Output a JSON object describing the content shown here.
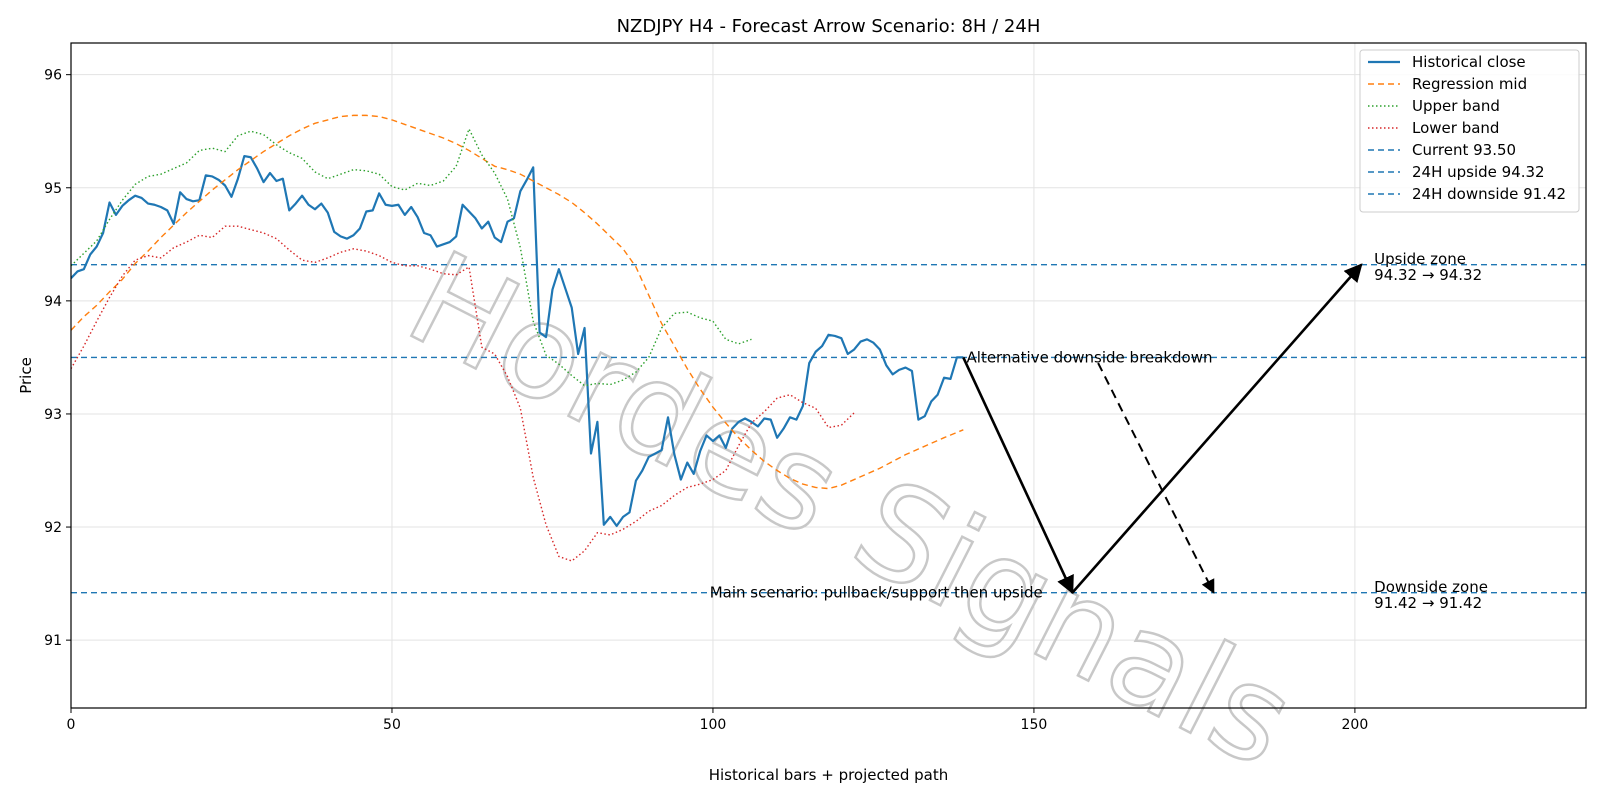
{
  "chart_data": {
    "type": "line",
    "title": "NZDJPY H4 - Forecast Arrow Scenario: 8H / 24H",
    "xlabel": "Historical bars + projected path",
    "ylabel": "Price",
    "xlim": [
      0,
      236
    ],
    "ylim": [
      90.4,
      96.28
    ],
    "xticks": [
      0,
      50,
      100,
      150,
      200
    ],
    "yticks": [
      91,
      92,
      93,
      94,
      95,
      96
    ],
    "grid": true,
    "legend_position": "top-right",
    "series": [
      {
        "name": "Historical close",
        "style": "solid",
        "color": "#1f77b4",
        "values": [
          94.2,
          94.26,
          94.28,
          94.41,
          94.48,
          94.6,
          94.87,
          94.76,
          94.84,
          94.89,
          94.93,
          94.91,
          94.86,
          94.85,
          94.83,
          94.8,
          94.68,
          94.96,
          94.9,
          94.88,
          94.89,
          95.11,
          95.1,
          95.07,
          95.02,
          94.92,
          95.08,
          95.28,
          95.27,
          95.17,
          95.05,
          95.13,
          95.06,
          95.08,
          94.8,
          94.86,
          94.93,
          94.85,
          94.81,
          94.86,
          94.78,
          94.61,
          94.57,
          94.55,
          94.58,
          94.64,
          94.79,
          94.8,
          94.95,
          94.85,
          94.84,
          94.85,
          94.76,
          94.83,
          94.74,
          94.6,
          94.58,
          94.48,
          94.5,
          94.52,
          94.57,
          94.85,
          94.79,
          94.73,
          94.64,
          94.7,
          94.56,
          94.52,
          94.7,
          94.73,
          94.97,
          95.07,
          95.18,
          93.72,
          93.68,
          94.1,
          94.28,
          94.11,
          93.94,
          93.53,
          93.76,
          92.65,
          92.93,
          92.02,
          92.09,
          92.01,
          92.09,
          92.13,
          92.41,
          92.5,
          92.62,
          92.65,
          92.68,
          92.97,
          92.64,
          92.42,
          92.57,
          92.47,
          92.67,
          92.81,
          92.76,
          92.81,
          92.7,
          92.87,
          92.93,
          92.96,
          92.93,
          92.89,
          92.96,
          92.95,
          92.79,
          92.87,
          92.97,
          92.95,
          93.07,
          93.45,
          93.55,
          93.6,
          93.7,
          93.69,
          93.67,
          93.53,
          93.57,
          93.64,
          93.66,
          93.63,
          93.57,
          93.43,
          93.35,
          93.39,
          93.41,
          93.38,
          92.95,
          92.98,
          93.11,
          93.17,
          93.32,
          93.31,
          93.5,
          93.5
        ]
      },
      {
        "name": "Regression mid",
        "style": "dashed",
        "color": "#ff7f0e",
        "values": [
          93.74,
          93.86,
          93.96,
          94.08,
          94.19,
          94.33,
          94.44,
          94.56,
          94.67,
          94.78,
          94.88,
          94.98,
          95.07,
          95.16,
          95.24,
          95.32,
          95.39,
          95.46,
          95.52,
          95.57,
          95.6,
          95.63,
          95.64,
          95.64,
          95.63,
          95.6,
          95.56,
          95.52,
          95.48,
          95.44,
          95.39,
          95.33,
          95.26,
          95.19,
          95.16,
          95.12,
          95.06,
          95.0,
          94.94,
          94.87,
          94.78,
          94.68,
          94.57,
          94.46,
          94.3,
          94.05,
          93.8,
          93.6,
          93.4,
          93.22,
          93.06,
          92.92,
          92.79,
          92.68,
          92.58,
          92.5,
          92.43,
          92.38,
          92.35,
          92.34,
          92.37,
          92.42,
          92.47,
          92.52,
          92.58,
          92.64,
          92.69,
          92.74,
          92.79,
          92.86
        ],
        "x": [
          0,
          2,
          4,
          6,
          8,
          10,
          12,
          14,
          16,
          18,
          20,
          22,
          24,
          26,
          28,
          30,
          32,
          34,
          36,
          38,
          40,
          42,
          44,
          46,
          48,
          50,
          52,
          54,
          56,
          58,
          60,
          62,
          64,
          66,
          68,
          70,
          72,
          74,
          76,
          78,
          80,
          82,
          84,
          86,
          88,
          90,
          92,
          94,
          96,
          98,
          100,
          102,
          104,
          106,
          108,
          110,
          112,
          114,
          116,
          118,
          120,
          122,
          124,
          126,
          128,
          130,
          132,
          134,
          136,
          139
        ]
      },
      {
        "name": "Upper band",
        "style": "dotted",
        "color": "#2ca02c",
        "values": [
          94.31,
          94.42,
          94.53,
          94.72,
          94.89,
          95.03,
          95.1,
          95.12,
          95.17,
          95.22,
          95.33,
          95.35,
          95.32,
          95.46,
          95.5,
          95.47,
          95.38,
          95.31,
          95.26,
          95.14,
          95.08,
          95.12,
          95.16,
          95.15,
          95.12,
          95.01,
          94.98,
          95.04,
          95.02,
          95.06,
          95.19,
          95.52,
          95.29,
          95.13,
          94.9,
          94.47,
          93.82,
          93.52,
          93.44,
          93.34,
          93.25,
          93.27,
          93.26,
          93.3,
          93.37,
          93.5,
          93.76,
          93.89,
          93.9,
          93.85,
          93.82,
          93.66,
          93.62,
          93.66
        ],
        "x": [
          0,
          2,
          4,
          6,
          8,
          10,
          12,
          14,
          16,
          18,
          20,
          22,
          24,
          26,
          28,
          30,
          32,
          34,
          36,
          38,
          40,
          42,
          44,
          46,
          48,
          50,
          52,
          54,
          56,
          58,
          60,
          62,
          64,
          66,
          68,
          70,
          72,
          74,
          76,
          78,
          80,
          82,
          84,
          86,
          88,
          90,
          92,
          94,
          96,
          98,
          100,
          102,
          104,
          106
        ]
      },
      {
        "name": "Lower band",
        "style": "dotted",
        "color": "#d62728",
        "values": [
          93.4,
          93.6,
          93.82,
          94.03,
          94.22,
          94.36,
          94.4,
          94.38,
          94.47,
          94.52,
          94.58,
          94.56,
          94.66,
          94.66,
          94.63,
          94.6,
          94.55,
          94.45,
          94.36,
          94.34,
          94.38,
          94.43,
          94.46,
          94.44,
          94.4,
          94.34,
          94.31,
          94.31,
          94.28,
          94.24,
          94.23,
          94.3,
          93.59,
          93.53,
          93.33,
          93.05,
          92.44,
          92.02,
          91.74,
          91.7,
          91.79,
          91.95,
          91.93,
          91.98,
          92.05,
          92.14,
          92.19,
          92.28,
          92.35,
          92.38,
          92.42,
          92.5,
          92.72,
          92.92,
          93.02,
          93.14,
          93.17,
          93.1,
          93.05,
          92.88,
          92.9,
          93.01
        ],
        "x": [
          0,
          2,
          4,
          6,
          8,
          10,
          12,
          14,
          16,
          18,
          20,
          22,
          24,
          26,
          28,
          30,
          32,
          34,
          36,
          38,
          40,
          42,
          44,
          46,
          48,
          50,
          52,
          54,
          56,
          58,
          60,
          62,
          64,
          66,
          68,
          70,
          72,
          74,
          76,
          78,
          80,
          82,
          84,
          86,
          88,
          90,
          92,
          94,
          96,
          98,
          100,
          102,
          104,
          106,
          108,
          110,
          112,
          114,
          116,
          118,
          120,
          122
        ]
      }
    ],
    "horizontal_lines": [
      {
        "name": "Current 93.50",
        "y": 93.5,
        "color": "#1f77b4",
        "style": "dashed"
      },
      {
        "name": "24H upside 94.32",
        "y": 94.32,
        "color": "#1f77b4",
        "style": "dashed"
      },
      {
        "name": "24H downside 91.42",
        "y": 91.42,
        "color": "#1f77b4",
        "style": "dashed"
      }
    ],
    "arrows": [
      {
        "from": [
          139,
          93.5
        ],
        "to": [
          156,
          91.42
        ],
        "style": "solid"
      },
      {
        "from": [
          156,
          91.42
        ],
        "to": [
          201,
          94.32
        ],
        "style": "solid"
      },
      {
        "from": [
          160,
          93.45
        ],
        "to": [
          178,
          91.42
        ],
        "style": "dashed"
      }
    ],
    "annotations": [
      {
        "text": "Upside zone",
        "x": 203,
        "y": 94.37
      },
      {
        "text": "94.32 → 94.32",
        "x": 203,
        "y": 94.23
      },
      {
        "text": "Downside zone",
        "x": 203,
        "y": 91.47
      },
      {
        "text": "91.42 → 91.42",
        "x": 203,
        "y": 91.33
      },
      {
        "text": "Alternative downside breakdown",
        "x": 139.5,
        "y": 93.5
      },
      {
        "text": "Main scenario: pullback/support then upside",
        "x": 99.5,
        "y": 91.42
      }
    ],
    "watermark": "Hordes Signals"
  }
}
